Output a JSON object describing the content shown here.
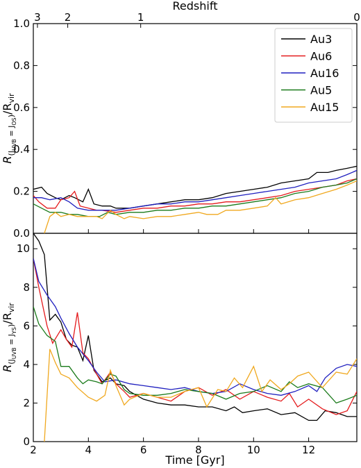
{
  "colors": {
    "Au3": "#000000",
    "Au6": "#e41a1c",
    "Au16": "#1f1fbf",
    "Au5": "#1a7a1a",
    "Au15": "#f0a81e"
  },
  "chart_data": {
    "type": "line",
    "top_axis": {
      "label": "Redshift",
      "ticks": [
        {
          "label": "3",
          "time": 2.15
        },
        {
          "label": "2",
          "time": 3.25
        },
        {
          "label": "1",
          "time": 5.9
        },
        {
          "label": "0",
          "time": 13.75
        }
      ]
    },
    "xlabel": "Time [Gyr]",
    "xlim": [
      2.0,
      13.75
    ],
    "xticks": [
      2,
      4,
      6,
      8,
      10,
      12
    ],
    "legend": {
      "placement": "top-right",
      "entries": [
        "Au3",
        "Au6",
        "Au16",
        "Au5",
        "Au15"
      ]
    },
    "panels": [
      {
        "ylabel": "R(J_UVB = J_OS)/R_vir",
        "ylabel_main": "R",
        "ylabel_sub": "(J",
        "ylabel_subsub": "UVB",
        "ylabel_sub2": " = J",
        "ylabel_subsub2": "OS",
        "ylabel_sub3": ")",
        "ylabel_mid": "/R",
        "ylabel_sub4": "vir",
        "ylim": [
          0.0,
          1.0
        ],
        "yticks": [
          "0.0",
          "0.2",
          "0.4",
          "0.6",
          "0.8",
          "1.0"
        ],
        "series": [
          {
            "name": "Au3",
            "x": [
              2.0,
              2.3,
              2.5,
              2.8,
              3.0,
              3.3,
              3.5,
              3.8,
              4.0,
              4.2,
              4.5,
              4.8,
              5.0,
              5.5,
              6.0,
              6.5,
              7.0,
              7.5,
              8.0,
              8.5,
              9.0,
              9.5,
              10.0,
              10.5,
              11.0,
              11.5,
              12.0,
              12.3,
              12.7,
              13.0,
              13.4,
              13.75
            ],
            "y": [
              0.21,
              0.22,
              0.19,
              0.17,
              0.16,
              0.18,
              0.17,
              0.15,
              0.21,
              0.14,
              0.13,
              0.13,
              0.12,
              0.12,
              0.13,
              0.14,
              0.15,
              0.16,
              0.16,
              0.17,
              0.19,
              0.2,
              0.21,
              0.22,
              0.24,
              0.25,
              0.26,
              0.29,
              0.29,
              0.3,
              0.31,
              0.32
            ]
          },
          {
            "name": "Au6",
            "x": [
              2.0,
              2.2,
              2.5,
              2.8,
              3.0,
              3.3,
              3.5,
              3.7,
              4.0,
              4.3,
              4.5,
              5.0,
              5.5,
              6.0,
              6.5,
              7.0,
              7.5,
              8.0,
              8.5,
              9.0,
              9.5,
              10.0,
              10.5,
              11.0,
              11.5,
              12.0,
              12.5,
              13.0,
              13.4,
              13.75
            ],
            "y": [
              0.18,
              0.15,
              0.12,
              0.12,
              0.16,
              0.17,
              0.2,
              0.13,
              0.12,
              0.11,
              0.11,
              0.1,
              0.11,
              0.12,
              0.12,
              0.13,
              0.13,
              0.14,
              0.14,
              0.15,
              0.15,
              0.16,
              0.17,
              0.18,
              0.2,
              0.21,
              0.22,
              0.23,
              0.25,
              0.26
            ]
          },
          {
            "name": "Au16",
            "x": [
              2.0,
              2.3,
              2.6,
              3.0,
              3.3,
              3.6,
              4.0,
              4.5,
              5.0,
              5.5,
              6.0,
              6.5,
              7.0,
              7.5,
              8.0,
              8.5,
              9.0,
              9.5,
              10.0,
              10.5,
              11.0,
              11.5,
              12.0,
              12.5,
              13.0,
              13.4,
              13.75
            ],
            "y": [
              0.17,
              0.17,
              0.16,
              0.17,
              0.15,
              0.12,
              0.11,
              0.11,
              0.11,
              0.12,
              0.13,
              0.14,
              0.14,
              0.15,
              0.15,
              0.16,
              0.17,
              0.18,
              0.19,
              0.2,
              0.21,
              0.22,
              0.24,
              0.25,
              0.26,
              0.28,
              0.3
            ]
          },
          {
            "name": "Au5",
            "x": [
              2.0,
              2.3,
              2.6,
              3.0,
              3.3,
              3.6,
              4.0,
              4.4,
              4.7,
              5.0,
              5.5,
              6.0,
              6.5,
              7.0,
              7.5,
              8.0,
              8.5,
              9.0,
              9.5,
              10.0,
              10.5,
              11.0,
              11.5,
              12.0,
              12.5,
              13.0,
              13.4,
              13.75
            ],
            "y": [
              0.14,
              0.12,
              0.1,
              0.1,
              0.09,
              0.09,
              0.08,
              0.08,
              0.1,
              0.09,
              0.1,
              0.1,
              0.11,
              0.11,
              0.12,
              0.12,
              0.13,
              0.13,
              0.14,
              0.15,
              0.16,
              0.17,
              0.19,
              0.2,
              0.22,
              0.23,
              0.24,
              0.26
            ]
          },
          {
            "name": "Au15",
            "x": [
              2.4,
              2.6,
              2.8,
              3.0,
              3.3,
              3.6,
              4.0,
              4.3,
              4.5,
              4.8,
              5.0,
              5.3,
              5.5,
              6.0,
              6.5,
              7.0,
              7.5,
              8.0,
              8.3,
              8.7,
              9.0,
              9.5,
              10.0,
              10.5,
              10.8,
              11.0,
              11.5,
              12.0,
              12.5,
              13.0,
              13.4,
              13.75
            ],
            "y": [
              0.0,
              0.08,
              0.1,
              0.08,
              0.09,
              0.08,
              0.08,
              0.08,
              0.07,
              0.11,
              0.09,
              0.07,
              0.08,
              0.07,
              0.08,
              0.08,
              0.09,
              0.1,
              0.09,
              0.09,
              0.11,
              0.11,
              0.12,
              0.13,
              0.17,
              0.14,
              0.16,
              0.17,
              0.19,
              0.21,
              0.23,
              0.25
            ]
          }
        ]
      },
      {
        "ylabel": "R(J_UVB = J_YS)/R_vir",
        "ylabel_main": "R",
        "ylabel_sub": "(J",
        "ylabel_subsub": "UVB",
        "ylabel_sub2": " = J",
        "ylabel_subsub2": "YS",
        "ylabel_sub3": ")",
        "ylabel_mid": "/R",
        "ylabel_sub4": "vir",
        "ylim": [
          0.0,
          10.8
        ],
        "yticks": [
          "0",
          "2",
          "4",
          "6",
          "8",
          "10"
        ],
        "series": [
          {
            "name": "Au3",
            "x": [
              2.0,
              2.2,
              2.4,
              2.6,
              2.8,
              3.0,
              3.2,
              3.4,
              3.6,
              3.8,
              4.0,
              4.2,
              4.5,
              4.8,
              5.0,
              5.3,
              5.5,
              6.0,
              6.5,
              7.0,
              7.5,
              8.0,
              8.5,
              9.0,
              9.3,
              9.6,
              10.0,
              10.5,
              11.0,
              11.5,
              12.0,
              12.3,
              12.6,
              13.0,
              13.4,
              13.75
            ],
            "y": [
              10.8,
              10.4,
              9.7,
              6.3,
              6.6,
              6.2,
              5.3,
              5.0,
              4.9,
              4.2,
              5.5,
              3.7,
              3.1,
              3.3,
              3.0,
              2.9,
              2.6,
              2.2,
              2.0,
              1.9,
              1.9,
              1.8,
              1.8,
              1.6,
              1.8,
              1.5,
              1.6,
              1.7,
              1.4,
              1.5,
              1.1,
              1.1,
              1.6,
              1.5,
              1.3,
              1.3
            ]
          },
          {
            "name": "Au6",
            "x": [
              2.0,
              2.2,
              2.5,
              2.7,
              3.0,
              3.2,
              3.4,
              3.6,
              3.8,
              4.0,
              4.3,
              4.5,
              4.8,
              5.0,
              5.3,
              5.5,
              6.0,
              6.5,
              7.0,
              7.5,
              8.0,
              8.5,
              9.0,
              9.5,
              10.0,
              10.5,
              11.0,
              11.3,
              11.6,
              12.0,
              12.5,
              13.0,
              13.4,
              13.75
            ],
            "y": [
              9.5,
              8.0,
              6.0,
              5.1,
              5.8,
              5.3,
              4.9,
              6.7,
              4.6,
              4.3,
              3.5,
              3.0,
              3.6,
              3.0,
              2.6,
              2.3,
              2.5,
              2.3,
              2.1,
              2.6,
              2.8,
              2.4,
              2.7,
              2.2,
              2.6,
              2.3,
              2.1,
              2.5,
              1.8,
              2.2,
              1.7,
              1.4,
              1.6,
              2.6
            ]
          },
          {
            "name": "Au16",
            "x": [
              2.0,
              2.2,
              2.5,
              2.8,
              3.0,
              3.3,
              3.6,
              4.0,
              4.3,
              4.6,
              5.0,
              5.5,
              6.0,
              6.5,
              7.0,
              7.5,
              8.0,
              8.5,
              9.0,
              9.5,
              10.0,
              10.5,
              11.0,
              11.5,
              12.0,
              12.3,
              12.6,
              13.0,
              13.4,
              13.75
            ],
            "y": [
              9.5,
              8.3,
              7.6,
              7.0,
              6.4,
              5.6,
              4.9,
              4.2,
              3.6,
              3.1,
              3.2,
              3.0,
              2.9,
              2.8,
              2.7,
              2.8,
              2.6,
              2.5,
              2.6,
              3.0,
              2.7,
              2.5,
              2.4,
              2.6,
              2.9,
              2.6,
              3.3,
              3.8,
              4.0,
              3.9
            ]
          },
          {
            "name": "Au5",
            "x": [
              2.0,
              2.2,
              2.5,
              2.8,
              3.0,
              3.3,
              3.6,
              3.8,
              4.0,
              4.3,
              4.5,
              4.8,
              5.0,
              5.3,
              5.5,
              6.0,
              6.5,
              7.0,
              7.5,
              8.0,
              8.5,
              9.0,
              9.5,
              10.0,
              10.5,
              11.0,
              11.3,
              11.6,
              12.0,
              12.5,
              13.0,
              13.4,
              13.75
            ],
            "y": [
              7.0,
              6.1,
              5.5,
              5.2,
              3.9,
              3.9,
              3.3,
              3.0,
              3.2,
              3.1,
              3.0,
              3.5,
              3.4,
              2.7,
              2.5,
              2.4,
              2.4,
              2.5,
              2.7,
              2.6,
              2.5,
              2.2,
              2.5,
              2.6,
              2.9,
              2.6,
              3.1,
              2.8,
              3.0,
              2.8,
              2.0,
              2.2,
              2.4
            ]
          },
          {
            "name": "Au15",
            "x": [
              2.4,
              2.6,
              2.8,
              3.0,
              3.3,
              3.6,
              4.0,
              4.3,
              4.6,
              4.8,
              5.0,
              5.3,
              5.5,
              6.0,
              6.5,
              7.0,
              7.5,
              8.0,
              8.3,
              8.7,
              9.0,
              9.3,
              9.6,
              10.0,
              10.3,
              10.6,
              11.0,
              11.3,
              11.6,
              12.0,
              12.5,
              13.0,
              13.4,
              13.75
            ],
            "y": [
              0.0,
              4.8,
              4.1,
              3.5,
              3.3,
              2.8,
              2.3,
              2.1,
              2.4,
              3.7,
              2.9,
              1.9,
              2.2,
              2.5,
              2.3,
              2.3,
              2.6,
              2.8,
              1.8,
              2.7,
              2.6,
              3.3,
              2.8,
              3.9,
              2.6,
              3.2,
              2.7,
              3.0,
              3.4,
              3.6,
              2.8,
              3.6,
              3.5,
              4.3
            ]
          }
        ]
      }
    ]
  }
}
